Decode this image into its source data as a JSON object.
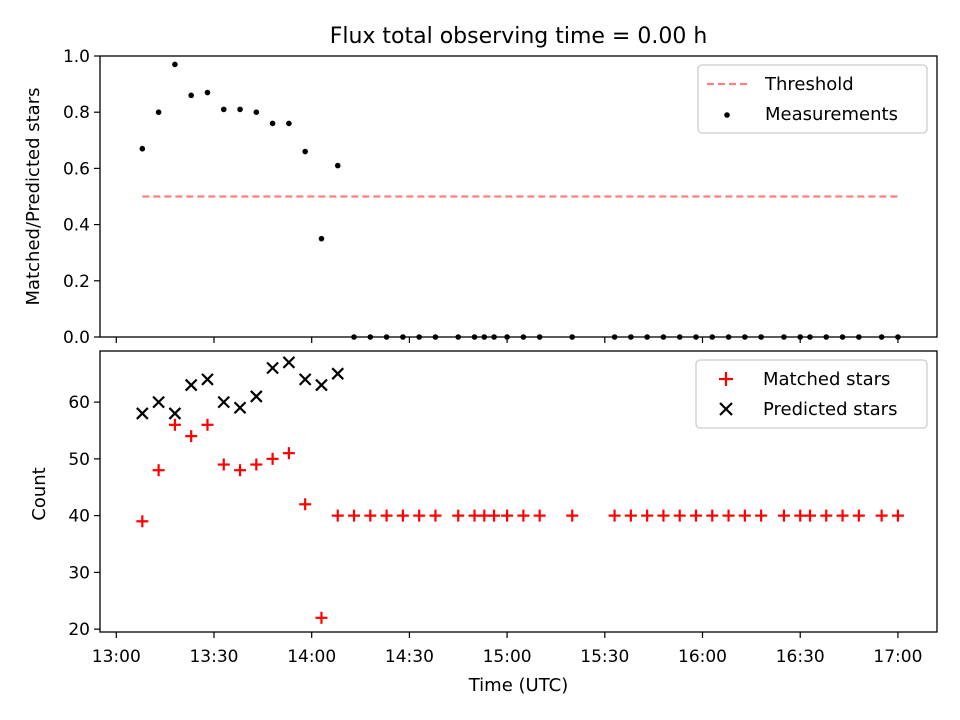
{
  "title": "Flux total observing time = 0.00 h",
  "colors": {
    "threshold": "#ff7f7f",
    "measurements": "#000000",
    "matched": "#ff0000",
    "predicted": "#000000"
  },
  "chart_data": [
    {
      "type": "scatter",
      "title": "Flux total observing time = 0.00 h",
      "xlabel": "",
      "ylabel": "Matched/Predicted stars",
      "ylim": [
        0,
        1.0
      ],
      "yticks": [
        "0.0",
        "0.2",
        "0.4",
        "0.6",
        "0.8",
        "1.0"
      ],
      "xlim": [
        "12:55",
        "17:12"
      ],
      "grid": false,
      "legend_position": "top-right",
      "series": [
        {
          "name": "Threshold",
          "style": "dashed-line",
          "x": [
            "13:08",
            "17:00"
          ],
          "values": [
            0.5,
            0.5
          ]
        },
        {
          "name": "Measurements",
          "style": "dot",
          "x": [
            "13:08",
            "13:13",
            "13:18",
            "13:23",
            "13:28",
            "13:33",
            "13:38",
            "13:43",
            "13:48",
            "13:53",
            "13:58",
            "14:03",
            "14:08",
            "14:13",
            "14:18",
            "14:23",
            "14:28",
            "14:33",
            "14:38",
            "14:45",
            "14:50",
            "14:53",
            "14:56",
            "15:00",
            "15:05",
            "15:10",
            "15:20",
            "15:33",
            "15:38",
            "15:43",
            "15:48",
            "15:53",
            "15:58",
            "16:03",
            "16:08",
            "16:13",
            "16:18",
            "16:25",
            "16:30",
            "16:33",
            "16:38",
            "16:43",
            "16:48",
            "16:55",
            "17:00"
          ],
          "values": [
            0.67,
            0.8,
            0.97,
            0.86,
            0.87,
            0.81,
            0.81,
            0.8,
            0.76,
            0.76,
            0.66,
            0.35,
            0.61,
            0,
            0,
            0,
            0,
            0,
            0,
            0,
            0,
            0,
            0,
            0,
            0,
            0,
            0,
            0,
            0,
            0,
            0,
            0,
            0,
            0,
            0,
            0,
            0,
            0,
            0,
            0,
            0,
            0,
            0,
            0,
            0
          ]
        }
      ]
    },
    {
      "type": "scatter",
      "xlabel": "Time (UTC)",
      "ylabel": "Count",
      "ylim": [
        19.5,
        69
      ],
      "yticks": [
        "20",
        "30",
        "40",
        "50",
        "60"
      ],
      "xticks": [
        "13:00",
        "13:30",
        "14:00",
        "14:30",
        "15:00",
        "15:30",
        "16:00",
        "16:30",
        "17:00"
      ],
      "xlim": [
        "12:55",
        "17:12"
      ],
      "grid": false,
      "legend_position": "top-right",
      "series": [
        {
          "name": "Matched stars",
          "marker": "+",
          "x": [
            "13:08",
            "13:13",
            "13:18",
            "13:23",
            "13:28",
            "13:33",
            "13:38",
            "13:43",
            "13:48",
            "13:53",
            "13:58",
            "14:03",
            "14:08",
            "14:13",
            "14:18",
            "14:23",
            "14:28",
            "14:33",
            "14:38",
            "14:45",
            "14:50",
            "14:53",
            "14:56",
            "15:00",
            "15:05",
            "15:10",
            "15:20",
            "15:33",
            "15:38",
            "15:43",
            "15:48",
            "15:53",
            "15:58",
            "16:03",
            "16:08",
            "16:13",
            "16:18",
            "16:25",
            "16:30",
            "16:33",
            "16:38",
            "16:43",
            "16:48",
            "16:55",
            "17:00"
          ],
          "values": [
            39,
            48,
            56,
            54,
            56,
            49,
            48,
            49,
            50,
            51,
            42,
            22,
            40,
            40,
            40,
            40,
            40,
            40,
            40,
            40,
            40,
            40,
            40,
            40,
            40,
            40,
            40,
            40,
            40,
            40,
            40,
            40,
            40,
            40,
            40,
            40,
            40,
            40,
            40,
            40,
            40,
            40,
            40,
            40,
            40
          ]
        },
        {
          "name": "Predicted stars",
          "marker": "x",
          "x": [
            "13:08",
            "13:13",
            "13:18",
            "13:23",
            "13:28",
            "13:33",
            "13:38",
            "13:43",
            "13:48",
            "13:53",
            "13:58",
            "14:03",
            "14:08"
          ],
          "values": [
            58,
            60,
            58,
            63,
            64,
            60,
            59,
            61,
            66,
            67,
            64,
            63,
            65
          ]
        }
      ]
    }
  ]
}
